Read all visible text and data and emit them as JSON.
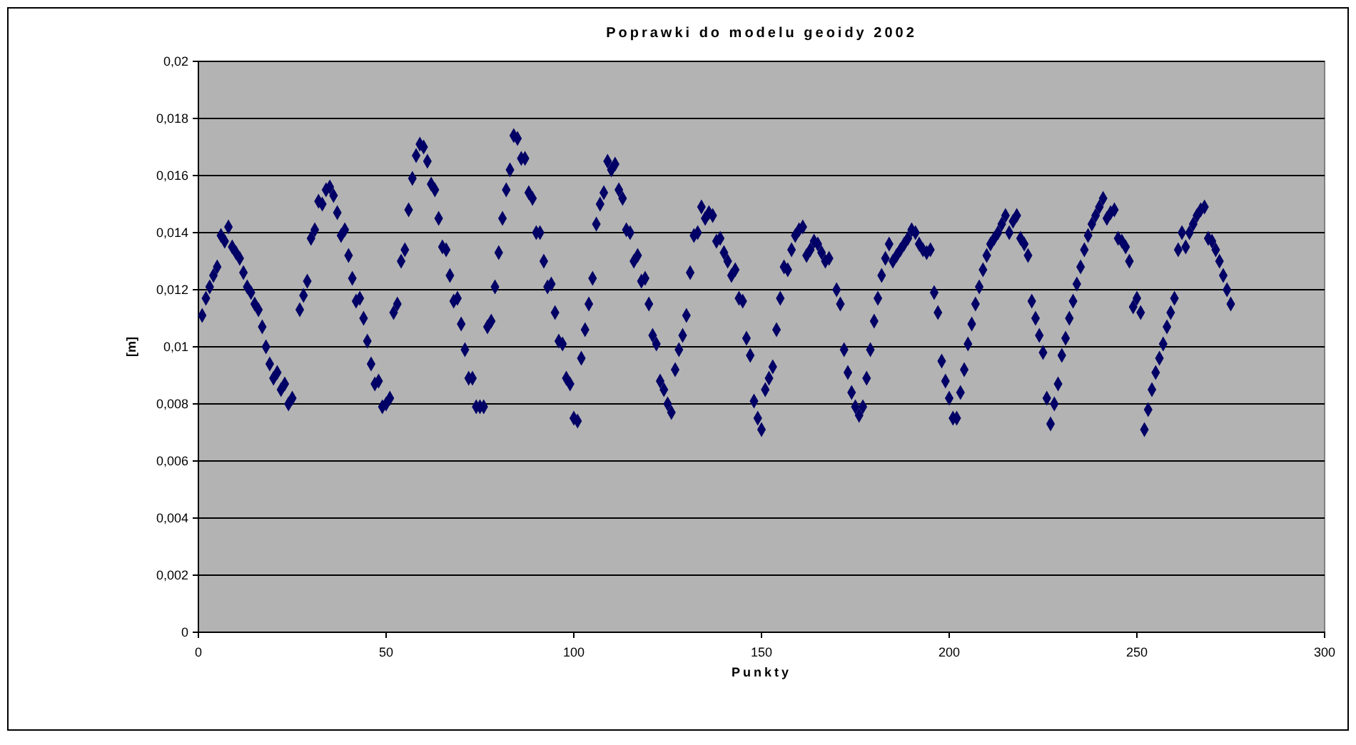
{
  "chart_data": {
    "type": "scatter",
    "title": "Poprawki do modelu geoidy 2002",
    "xlabel": "Punkty",
    "ylabel": "[m]",
    "marker": "diamond",
    "grid": "y",
    "xlim": [
      0,
      300
    ],
    "xticks": [
      0,
      50,
      100,
      150,
      200,
      250,
      300
    ],
    "ylim": [
      0,
      0.02
    ],
    "yticks": [
      0,
      {
        "value": 0.002,
        "label": "0,002"
      },
      {
        "value": 0.004,
        "label": "0,004"
      },
      {
        "value": 0.006,
        "label": "0,006"
      },
      {
        "value": 0.008,
        "label": "0,008"
      },
      {
        "value": 0.01,
        "label": "0,01"
      },
      {
        "value": 0.012,
        "label": "0,012"
      },
      {
        "value": 0.014,
        "label": "0,014"
      },
      {
        "value": 0.016,
        "label": "0,016"
      },
      {
        "value": 0.018,
        "label": "0,018"
      },
      {
        "value": 0.02,
        "label": "0,02"
      }
    ],
    "series": [
      {
        "color": "#000066",
        "x": [
          1,
          2,
          3,
          4,
          5,
          6,
          7,
          8,
          9,
          10,
          11,
          12,
          13,
          14,
          15,
          16,
          17,
          18,
          19,
          20,
          21,
          22,
          23,
          24,
          25,
          27,
          28,
          29,
          30,
          31,
          32,
          33,
          34,
          35,
          36,
          37,
          38,
          39,
          40,
          41,
          42,
          43,
          44,
          45,
          46,
          47,
          48,
          49,
          50,
          51,
          52,
          53,
          54,
          55,
          56,
          57,
          58,
          59,
          60,
          61,
          62,
          63,
          64,
          65,
          66,
          67,
          68,
          69,
          70,
          71,
          72,
          73,
          74,
          75,
          76,
          77,
          78,
          79,
          80,
          81,
          82,
          83,
          84,
          85,
          86,
          87,
          88,
          89,
          90,
          91,
          92,
          93,
          94,
          95,
          96,
          97,
          98,
          99,
          100,
          101,
          102,
          103,
          104,
          105,
          106,
          107,
          108,
          109,
          110,
          111,
          112,
          113,
          114,
          115,
          116,
          117,
          118,
          119,
          120,
          121,
          122,
          123,
          124,
          125,
          126,
          127,
          128,
          129,
          130,
          131,
          132,
          133,
          134,
          135,
          136,
          137,
          138,
          139,
          140,
          141,
          142,
          143,
          144,
          145,
          146,
          147,
          148,
          149,
          150,
          151,
          152,
          153,
          154,
          155,
          156,
          157,
          158,
          159,
          160,
          161,
          162,
          163,
          164,
          165,
          166,
          167,
          168,
          170,
          171,
          172,
          173,
          174,
          175,
          176,
          177,
          178,
          179,
          180,
          181,
          182,
          183,
          184,
          185,
          186,
          187,
          188,
          189,
          190,
          191,
          192,
          193,
          194,
          195,
          196,
          197,
          198,
          199,
          200,
          201,
          202,
          203,
          204,
          205,
          206,
          207,
          208,
          209,
          210,
          211,
          212,
          213,
          214,
          215,
          216,
          217,
          218,
          219,
          220,
          221,
          222,
          223,
          224,
          225,
          226,
          227,
          228,
          229,
          230,
          231,
          232,
          233,
          234,
          235,
          236,
          237,
          238,
          239,
          240,
          241,
          242,
          243,
          244,
          245,
          246,
          247,
          248,
          249,
          250,
          251,
          252,
          253,
          254,
          255,
          256,
          257,
          258,
          259,
          260,
          261,
          262,
          263,
          264,
          265,
          266,
          267,
          268,
          269,
          270,
          271,
          272,
          273,
          274,
          275
        ],
        "values": [
          0.0111,
          0.0117,
          0.0121,
          0.0125,
          0.0128,
          0.0139,
          0.0137,
          0.0142,
          0.0135,
          0.0133,
          0.0131,
          0.0126,
          0.0121,
          0.0119,
          0.0115,
          0.0113,
          0.0107,
          0.01,
          0.0094,
          0.0089,
          0.0091,
          0.0085,
          0.0087,
          0.008,
          0.0082,
          0.0113,
          0.0118,
          0.0123,
          0.0138,
          0.0141,
          0.0151,
          0.015,
          0.0155,
          0.0156,
          0.0153,
          0.0147,
          0.0139,
          0.0141,
          0.0132,
          0.0124,
          0.0116,
          0.0117,
          0.011,
          0.0102,
          0.0094,
          0.0087,
          0.0088,
          0.0079,
          0.008,
          0.0082,
          0.0112,
          0.0115,
          0.013,
          0.0134,
          0.0148,
          0.0159,
          0.0167,
          0.0171,
          0.017,
          0.0165,
          0.0157,
          0.0155,
          0.0145,
          0.0135,
          0.0134,
          0.0125,
          0.0116,
          0.0117,
          0.0108,
          0.0099,
          0.0089,
          0.0089,
          0.0079,
          0.0079,
          0.0079,
          0.0107,
          0.0109,
          0.0121,
          0.0133,
          0.0145,
          0.0155,
          0.0162,
          0.0174,
          0.0173,
          0.0166,
          0.0166,
          0.0154,
          0.0152,
          0.014,
          0.014,
          0.013,
          0.0121,
          0.0122,
          0.0112,
          0.0102,
          0.0101,
          0.0089,
          0.0087,
          0.0075,
          0.0074,
          0.0096,
          0.0106,
          0.0115,
          0.0124,
          0.0143,
          0.015,
          0.0154,
          0.0165,
          0.0162,
          0.0164,
          0.0155,
          0.0152,
          0.0141,
          0.014,
          0.013,
          0.0132,
          0.0123,
          0.0124,
          0.0115,
          0.0104,
          0.0101,
          0.0088,
          0.0085,
          0.008,
          0.0077,
          0.0092,
          0.0099,
          0.0104,
          0.0111,
          0.0126,
          0.0139,
          0.014,
          0.0149,
          0.0145,
          0.0147,
          0.0146,
          0.0137,
          0.0138,
          0.0133,
          0.013,
          0.0125,
          0.0127,
          0.0117,
          0.0116,
          0.0103,
          0.0097,
          0.0081,
          0.0075,
          0.0071,
          0.0085,
          0.0089,
          0.0093,
          0.0106,
          0.0117,
          0.0128,
          0.0127,
          0.0134,
          0.0139,
          0.0141,
          0.0142,
          0.0132,
          0.0134,
          0.0137,
          0.0136,
          0.0133,
          0.013,
          0.0131,
          0.012,
          0.0115,
          0.0099,
          0.0091,
          0.0084,
          0.0079,
          0.0076,
          0.0079,
          0.0089,
          0.0099,
          0.0109,
          0.0117,
          0.0125,
          0.0131,
          0.0136,
          0.013,
          0.0132,
          0.0134,
          0.0136,
          0.0138,
          0.0141,
          0.014,
          0.0136,
          0.0134,
          0.0133,
          0.0134,
          0.0119,
          0.0112,
          0.0095,
          0.0088,
          0.0082,
          0.0075,
          0.0075,
          0.0084,
          0.0092,
          0.0101,
          0.0108,
          0.0115,
          0.0121,
          0.0127,
          0.0132,
          0.0136,
          0.0138,
          0.014,
          0.0143,
          0.0146,
          0.014,
          0.0144,
          0.0146,
          0.0138,
          0.0136,
          0.0132,
          0.0116,
          0.011,
          0.0104,
          0.0098,
          0.0082,
          0.0073,
          0.008,
          0.0087,
          0.0097,
          0.0103,
          0.011,
          0.0116,
          0.0122,
          0.0128,
          0.0134,
          0.0139,
          0.0143,
          0.0146,
          0.0149,
          0.0152,
          0.0145,
          0.0147,
          0.0148,
          0.0138,
          0.0137,
          0.0135,
          0.013,
          0.0114,
          0.0117,
          0.0112,
          0.0071,
          0.0078,
          0.0085,
          0.0091,
          0.0096,
          0.0101,
          0.0107,
          0.0112,
          0.0117,
          0.0134,
          0.014,
          0.0135,
          0.014,
          0.0143,
          0.0146,
          0.0148,
          0.0149,
          0.0138,
          0.0137,
          0.0134,
          0.013,
          0.0125,
          0.012,
          0.0115
        ]
      }
    ]
  }
}
